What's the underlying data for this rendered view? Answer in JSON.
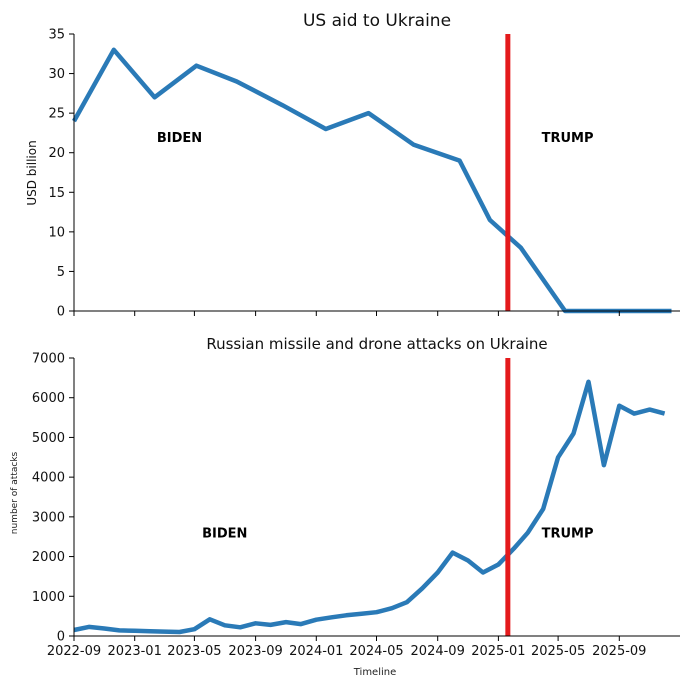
{
  "colors": {
    "line": "#2a7ab7",
    "marker": "#e41a1c",
    "axis": "#000000"
  },
  "chart_data": [
    {
      "type": "line",
      "title": "US aid to Ukraine",
      "xlabel": "",
      "ylabel": "USD billion",
      "xlim": [
        "2022-09-01",
        "2026-01-01"
      ],
      "ylim": [
        0,
        35
      ],
      "yticks": [
        0,
        5,
        10,
        15,
        20,
        25,
        30,
        35
      ],
      "series": [
        {
          "name": "US aid",
          "x": [
            "2022-09-01",
            "2022-11-20",
            "2023-02-10",
            "2023-05-05",
            "2023-07-25",
            "2023-10-25",
            "2024-01-20",
            "2024-04-15",
            "2024-07-15",
            "2024-10-15",
            "2024-12-15",
            "2025-02-15",
            "2025-05-15",
            "2025-09-15",
            "2025-12-15"
          ],
          "values": [
            24,
            33,
            27,
            31,
            29,
            26,
            23,
            25,
            21,
            19,
            11.5,
            8,
            0,
            0,
            0
          ]
        }
      ],
      "annotations": [
        {
          "text": "BIDEN",
          "x": "2023-04-01",
          "y": 22
        },
        {
          "text": "TRUMP",
          "x": "2025-05-20",
          "y": 22
        }
      ],
      "vline": "2025-01-20"
    },
    {
      "type": "line",
      "title": "Russian missile and drone attacks on Ukraine",
      "xlabel": "Timeline",
      "ylabel": "number of attacks",
      "xlim": [
        "2022-09-01",
        "2026-01-01"
      ],
      "ylim": [
        0,
        7000
      ],
      "yticks": [
        0,
        1000,
        2000,
        3000,
        4000,
        5000,
        6000,
        7000
      ],
      "xticks": [
        "2022-09",
        "2023-01",
        "2023-05",
        "2023-09",
        "2024-01",
        "2024-05",
        "2024-09",
        "2025-01",
        "2025-05",
        "2025-09"
      ],
      "series": [
        {
          "name": "Attacks",
          "x": [
            "2022-09-01",
            "2022-10-01",
            "2022-11-01",
            "2022-12-01",
            "2023-01-01",
            "2023-02-01",
            "2023-03-01",
            "2023-04-01",
            "2023-05-01",
            "2023-06-01",
            "2023-07-01",
            "2023-08-01",
            "2023-09-01",
            "2023-10-01",
            "2023-11-01",
            "2023-12-01",
            "2024-01-01",
            "2024-02-01",
            "2024-03-01",
            "2024-04-01",
            "2024-05-01",
            "2024-06-01",
            "2024-07-01",
            "2024-08-01",
            "2024-09-01",
            "2024-10-01",
            "2024-11-01",
            "2024-12-01",
            "2025-01-01",
            "2025-02-01",
            "2025-03-01",
            "2025-04-01",
            "2025-05-01",
            "2025-06-01",
            "2025-07-01",
            "2025-08-01",
            "2025-09-01",
            "2025-10-01",
            "2025-11-01",
            "2025-12-01"
          ],
          "values": [
            150,
            230,
            190,
            140,
            130,
            120,
            110,
            100,
            170,
            420,
            270,
            220,
            320,
            280,
            350,
            300,
            410,
            470,
            520,
            560,
            600,
            700,
            850,
            1200,
            1600,
            2100,
            1900,
            1600,
            1800,
            2200,
            2600,
            3200,
            4500,
            5100,
            6400,
            4300,
            5800,
            5600,
            5700,
            5600
          ]
        }
      ],
      "annotations": [
        {
          "text": "BIDEN",
          "x": "2023-07-01",
          "y": 2600
        },
        {
          "text": "TRUMP",
          "x": "2025-05-20",
          "y": 2600
        }
      ],
      "vline": "2025-01-20"
    }
  ]
}
